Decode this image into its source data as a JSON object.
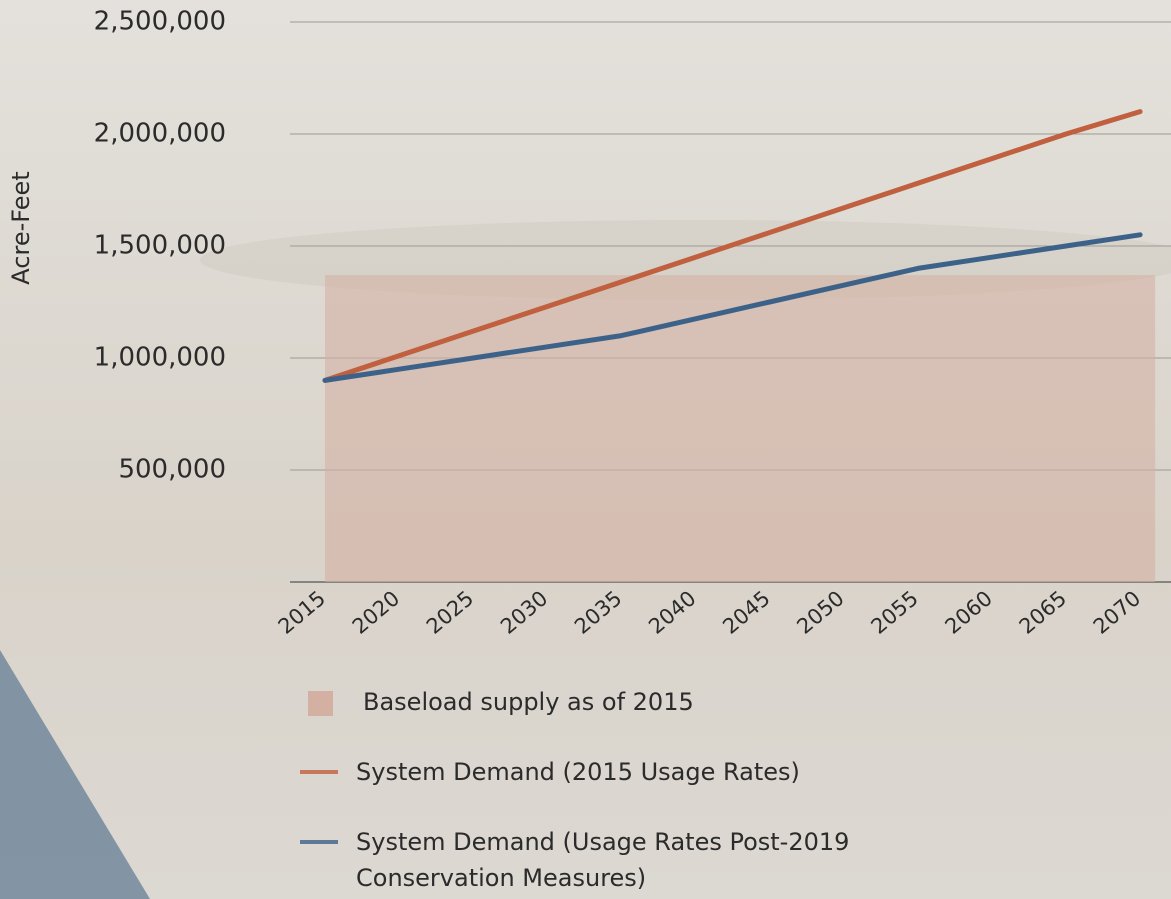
{
  "chart_data": {
    "type": "line",
    "y_label": "Acre-Feet",
    "categories": [
      "2015",
      "2020",
      "2025",
      "2030",
      "2035",
      "2040",
      "2045",
      "2050",
      "2055",
      "2060",
      "2065",
      "2070"
    ],
    "series": [
      {
        "name": "Baseload supply as of 2015",
        "kind": "area",
        "color": "#d4b0a3",
        "values": [
          1370000,
          1370000,
          1370000,
          1370000,
          1370000,
          1370000,
          1370000,
          1370000,
          1370000,
          1370000,
          1370000,
          1370000
        ]
      },
      {
        "name": "System Demand (2015 Usage Rates)",
        "color": "#c0603f",
        "values": [
          900000,
          1010000,
          1120000,
          1230000,
          1340000,
          1450000,
          1560000,
          1670000,
          1780000,
          1890000,
          2000000,
          2100000
        ]
      },
      {
        "name": "System Demand (Usage Rates Post-2019 Conservation Measures)",
        "color": "#3d6289",
        "values": [
          900000,
          950000,
          1000000,
          1050000,
          1100000,
          1175000,
          1250000,
          1325000,
          1400000,
          1450000,
          1500000,
          1550000
        ]
      }
    ],
    "ylim": [
      0,
      2500000
    ],
    "yticks": [
      {
        "value": 500000,
        "label": "500,000"
      },
      {
        "value": 1000000,
        "label": "1,000,000"
      },
      {
        "value": 1500000,
        "label": "1,500,000"
      },
      {
        "value": 2000000,
        "label": "2,000,000"
      },
      {
        "value": 2500000,
        "label": "2,500,000"
      }
    ],
    "grid": true
  }
}
